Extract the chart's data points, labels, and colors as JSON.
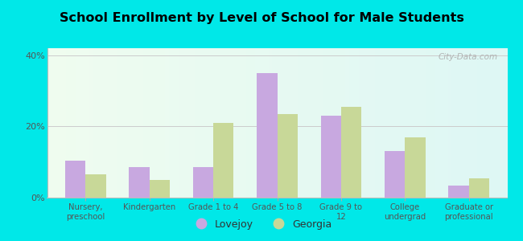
{
  "title": "School Enrollment by Level of School for Male Students",
  "categories": [
    "Nursery,\npreschool",
    "Kindergarten",
    "Grade 1 to 4",
    "Grade 5 to 8",
    "Grade 9 to\n12",
    "College\nundergrad",
    "Graduate or\nprofessional"
  ],
  "lovejoy_values": [
    10.5,
    8.5,
    8.5,
    35.0,
    23.0,
    13.0,
    3.5
  ],
  "georgia_values": [
    6.5,
    5.0,
    21.0,
    23.5,
    25.5,
    17.0,
    5.5
  ],
  "lovejoy_color": "#c8a8e0",
  "georgia_color": "#c8d898",
  "background_color": "#00e8e8",
  "ylim": [
    0,
    42
  ],
  "yticks": [
    0,
    20,
    40
  ],
  "ytick_labels": [
    "0%",
    "20%",
    "40%"
  ],
  "legend_labels": [
    "Lovejoy",
    "Georgia"
  ],
  "watermark": "City-Data.com"
}
